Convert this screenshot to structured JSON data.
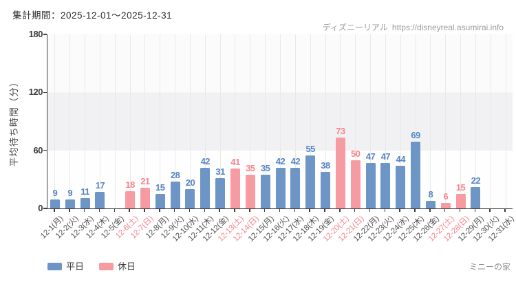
{
  "header": {
    "period_label": "集計期間：2025-12-01～2025-12-31",
    "brand": "ディズニーリアル",
    "url": "https://disneyreal.asumirai.info"
  },
  "legend": {
    "weekday": "平日",
    "holiday": "休日"
  },
  "footer": {
    "attraction": "ミニーの家"
  },
  "colors": {
    "weekday_bar": "#6d95c5",
    "holiday_bar": "#f79ba3",
    "weekday_value_label": "#5585c1",
    "holiday_value_label": "#f9848e",
    "weekday_tick_label": "#4d4d4d",
    "holiday_tick_label": "#f5838f",
    "axis": "#3c3c3c",
    "grid": "#e9e9eb",
    "band_gray": "#f1f1f3"
  },
  "chart_data": {
    "type": "bar",
    "title": "集計期間：2025-12-01～2025-12-31",
    "ylabel": "平均待ち時間（分）",
    "xlabel": "",
    "ylim": [
      0,
      180
    ],
    "yticks": [
      0,
      60,
      120,
      180
    ],
    "grid": true,
    "legend_position": "bottom-left",
    "legend_entries": [
      "平日",
      "休日"
    ],
    "categories": [
      "12-1(月)",
      "12-2(火)",
      "12-3(水)",
      "12-4(木)",
      "12-5(金)",
      "12-6(土)",
      "12-7(日)",
      "12-8(月)",
      "12-9(火)",
      "12-10(水)",
      "12-11(木)",
      "12-12(金)",
      "12-13(土)",
      "12-14(日)",
      "12-15(月)",
      "12-16(火)",
      "12-17(水)",
      "12-18(木)",
      "12-19(金)",
      "12-20(土)",
      "12-21(日)",
      "12-22(月)",
      "12-23(火)",
      "12-24(水)",
      "12-25(木)",
      "12-26(金)",
      "12-27(土)",
      "12-28(日)",
      "12-29(月)",
      "12-30(火)",
      "12-31(水)"
    ],
    "day_types": [
      "weekday",
      "weekday",
      "weekday",
      "weekday",
      "weekday",
      "holiday",
      "holiday",
      "weekday",
      "weekday",
      "weekday",
      "weekday",
      "weekday",
      "holiday",
      "holiday",
      "weekday",
      "weekday",
      "weekday",
      "weekday",
      "weekday",
      "holiday",
      "holiday",
      "weekday",
      "weekday",
      "weekday",
      "weekday",
      "weekday",
      "holiday",
      "holiday",
      "weekday",
      "weekday",
      "weekday"
    ],
    "values": [
      9,
      9,
      11,
      17,
      null,
      18,
      21,
      15,
      28,
      20,
      42,
      31,
      41,
      35,
      35,
      42,
      42,
      55,
      38,
      73,
      50,
      47,
      47,
      44,
      69,
      8,
      6,
      15,
      22,
      null,
      null
    ]
  }
}
